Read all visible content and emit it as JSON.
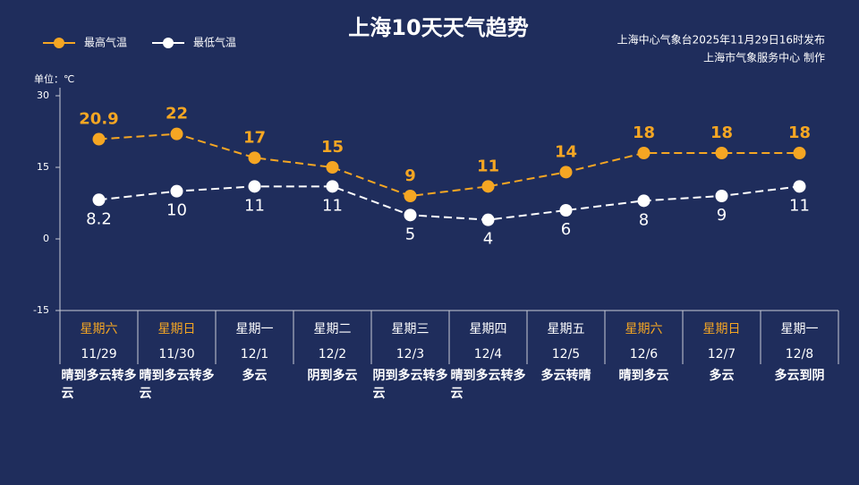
{
  "chart_data": {
    "type": "line",
    "title": "上海10天天气趋势",
    "source": [
      "上海中心气象台2025年11月29日16时发布",
      "上海市气象服务中心 制作"
    ],
    "unit_label": "单位：℃",
    "categories": [
      "11/29",
      "11/30",
      "12/1",
      "12/2",
      "12/3",
      "12/4",
      "12/5",
      "12/6",
      "12/7",
      "12/8"
    ],
    "weekdays": [
      "星期六",
      "星期日",
      "星期一",
      "星期二",
      "星期三",
      "星期四",
      "星期五",
      "星期六",
      "星期日",
      "星期一"
    ],
    "weekday_colors": [
      "#f5a623",
      "#f5a623",
      "#ffffff",
      "#ffffff",
      "#ffffff",
      "#ffffff",
      "#ffffff",
      "#f5a623",
      "#f5a623",
      "#ffffff"
    ],
    "weather": [
      "晴到多云转多云",
      "晴到多云转多云",
      "多云",
      "阴到多云",
      "阴到多云转多云",
      "晴到多云转多云",
      "多云转晴",
      "晴到多云",
      "多云",
      "多云到阴"
    ],
    "series": [
      {
        "name": "最高气温",
        "color": "#f5a623",
        "values": [
          20.9,
          22,
          17,
          15,
          9,
          11,
          14,
          18,
          18,
          18
        ]
      },
      {
        "name": "最低气温",
        "color": "#ffffff",
        "values": [
          8.2,
          10,
          11,
          11,
          5,
          4,
          6,
          8,
          9,
          11
        ]
      }
    ],
    "ylim": [
      -15,
      30
    ],
    "yticks": [
      -15,
      0,
      15,
      30
    ],
    "legend": "top-left"
  }
}
